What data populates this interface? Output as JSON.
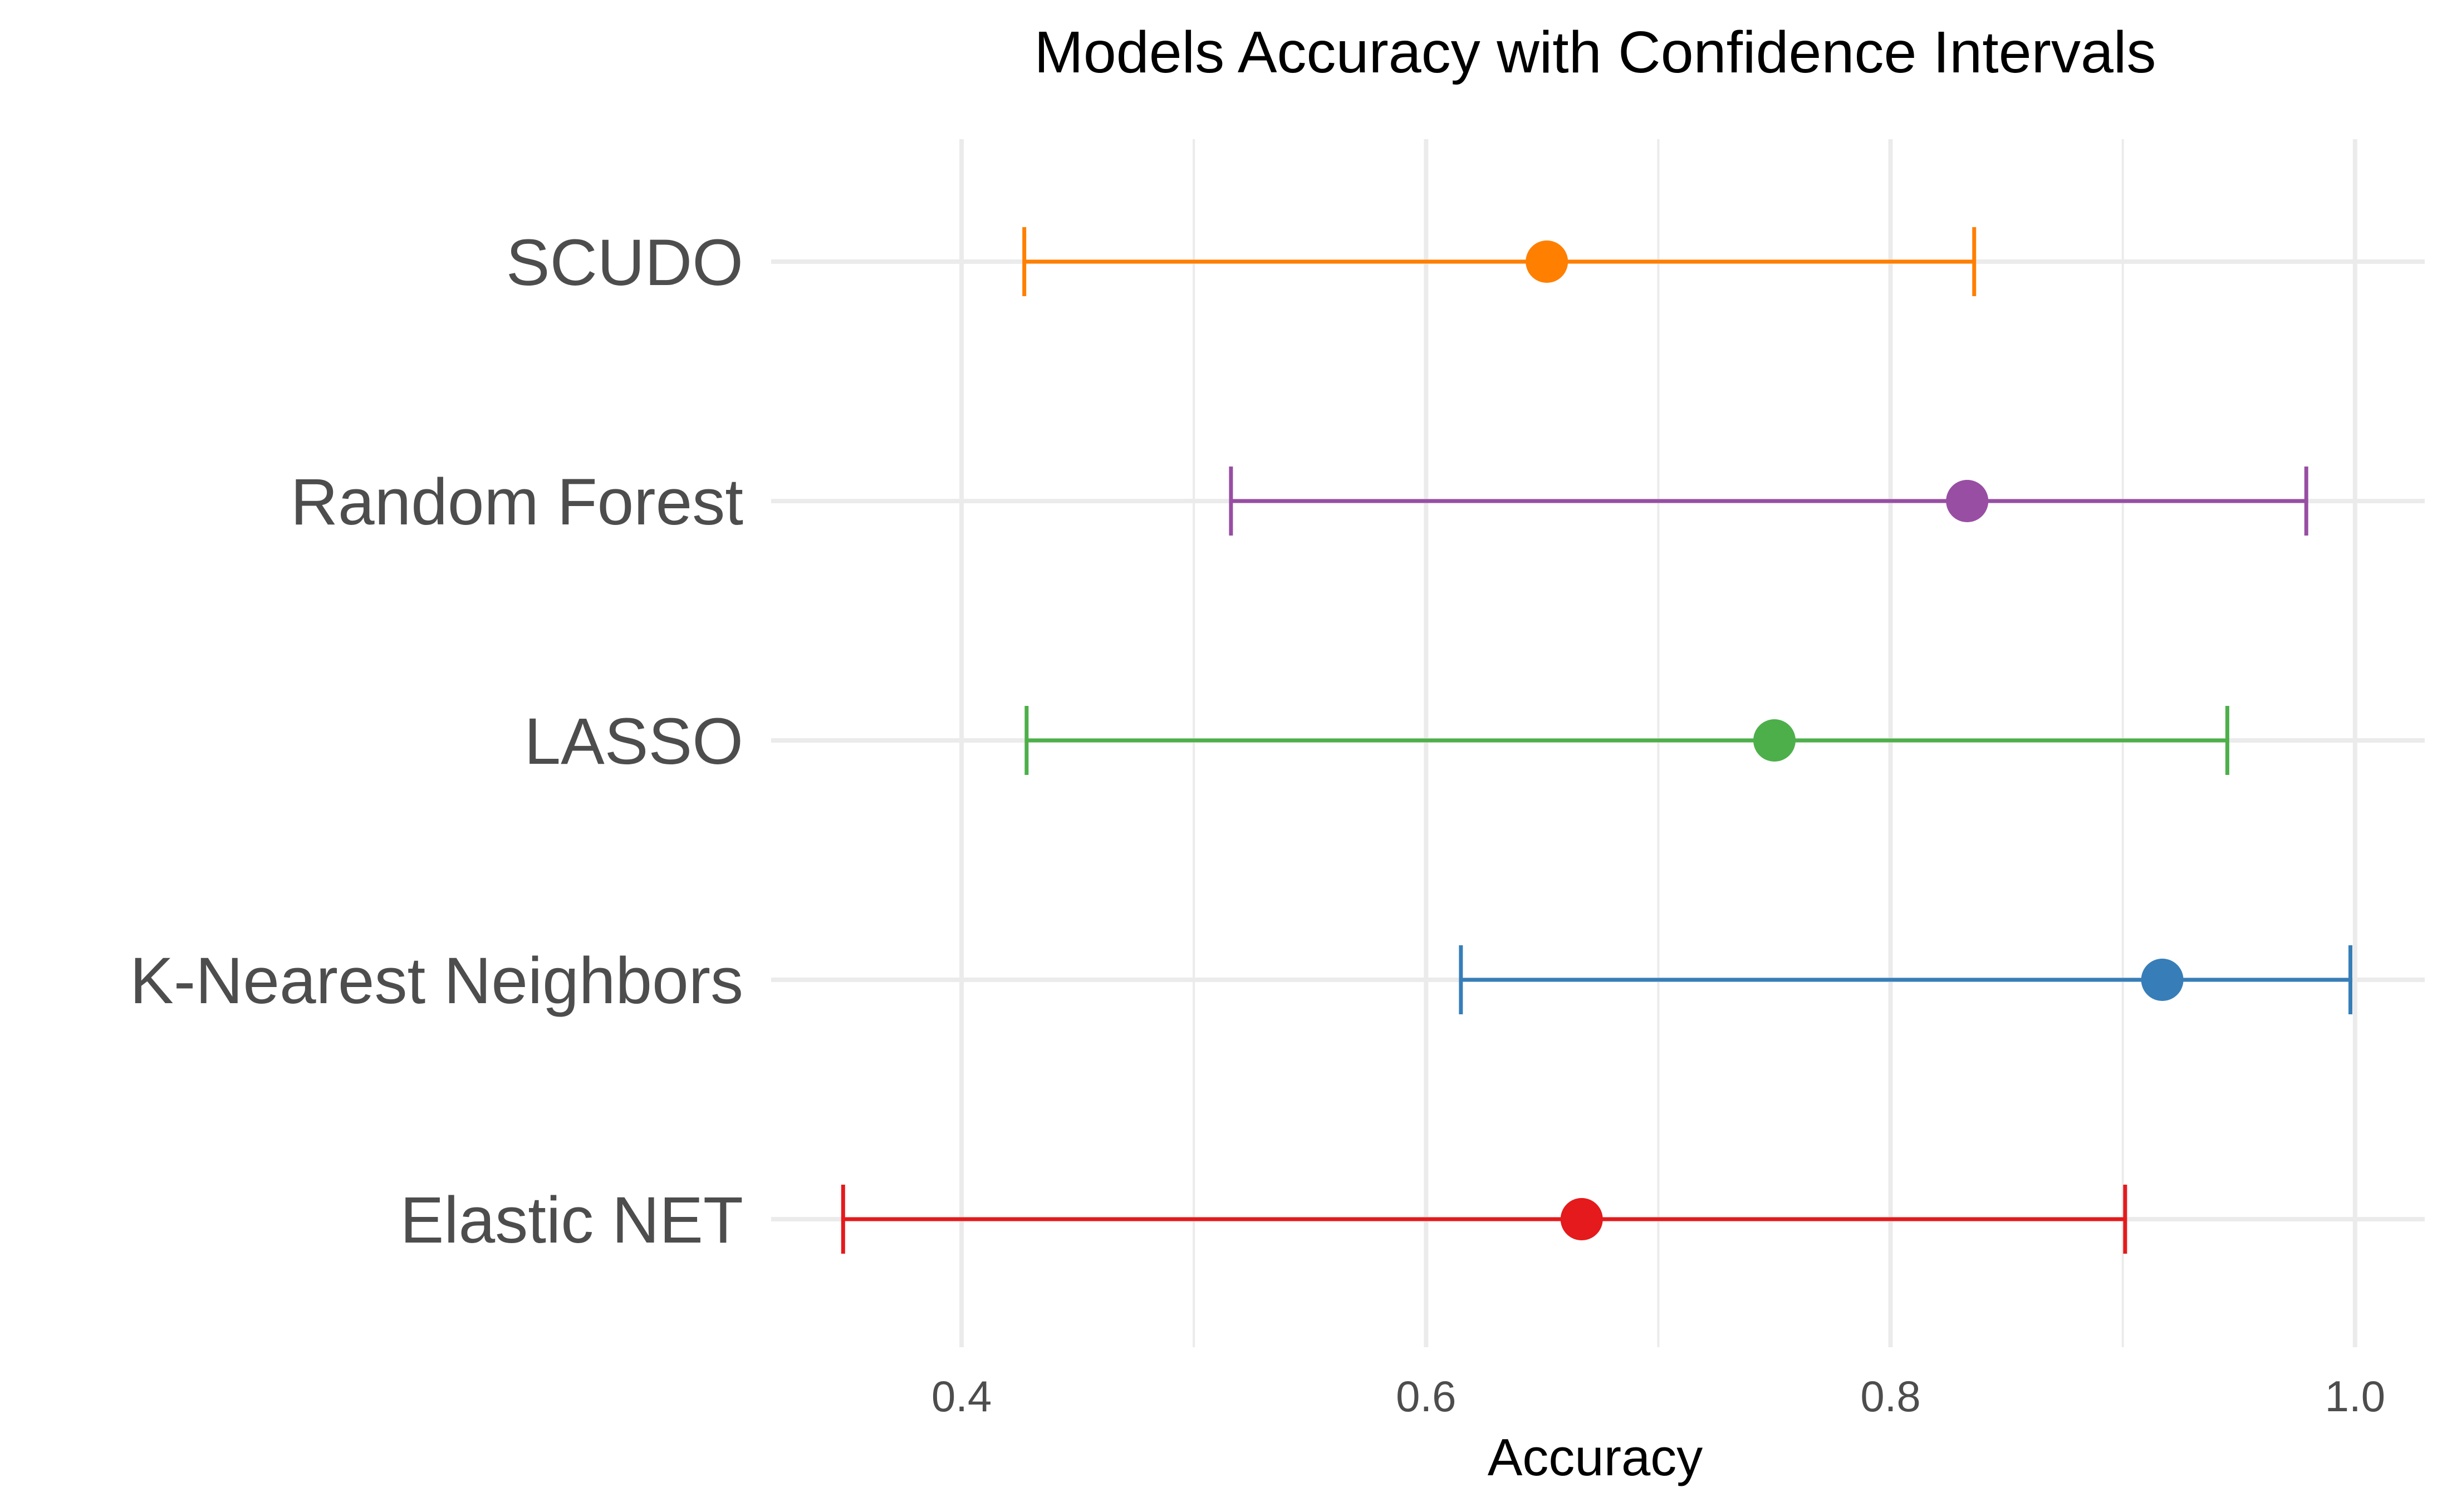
{
  "chart_data": {
    "type": "errorbar",
    "title": "Models Accuracy with Confidence Intervals",
    "xlabel": "Accuracy",
    "ylabel": "",
    "xlim": [
      0.318,
      1.03
    ],
    "x_ticks": [
      "0.4",
      "0.6",
      "0.8",
      "1.0"
    ],
    "x_tick_values": [
      0.4,
      0.6,
      0.8,
      1.0
    ],
    "x_minor_values": [
      0.5,
      0.7,
      0.9
    ],
    "grid": true,
    "legend": "none",
    "categories": [
      "SCUDO",
      "Random Forest",
      "LASSO",
      "K-Nearest Neighbors",
      "Elastic NET"
    ],
    "series": [
      {
        "category": "SCUDO",
        "accuracy": 0.652,
        "lower": 0.427,
        "upper": 0.836,
        "color": "#ff7f00"
      },
      {
        "category": "Random Forest",
        "accuracy": 0.833,
        "lower": 0.516,
        "upper": 0.979,
        "color": "#984ea3"
      },
      {
        "category": "LASSO",
        "accuracy": 0.75,
        "lower": 0.428,
        "upper": 0.945,
        "color": "#4daf4a"
      },
      {
        "category": "K-Nearest Neighbors",
        "accuracy": 0.917,
        "lower": 0.615,
        "upper": 0.998,
        "color": "#377eb8"
      },
      {
        "category": "Elastic NET",
        "accuracy": 0.667,
        "lower": 0.349,
        "upper": 0.901,
        "color": "#e41a1c"
      }
    ]
  }
}
